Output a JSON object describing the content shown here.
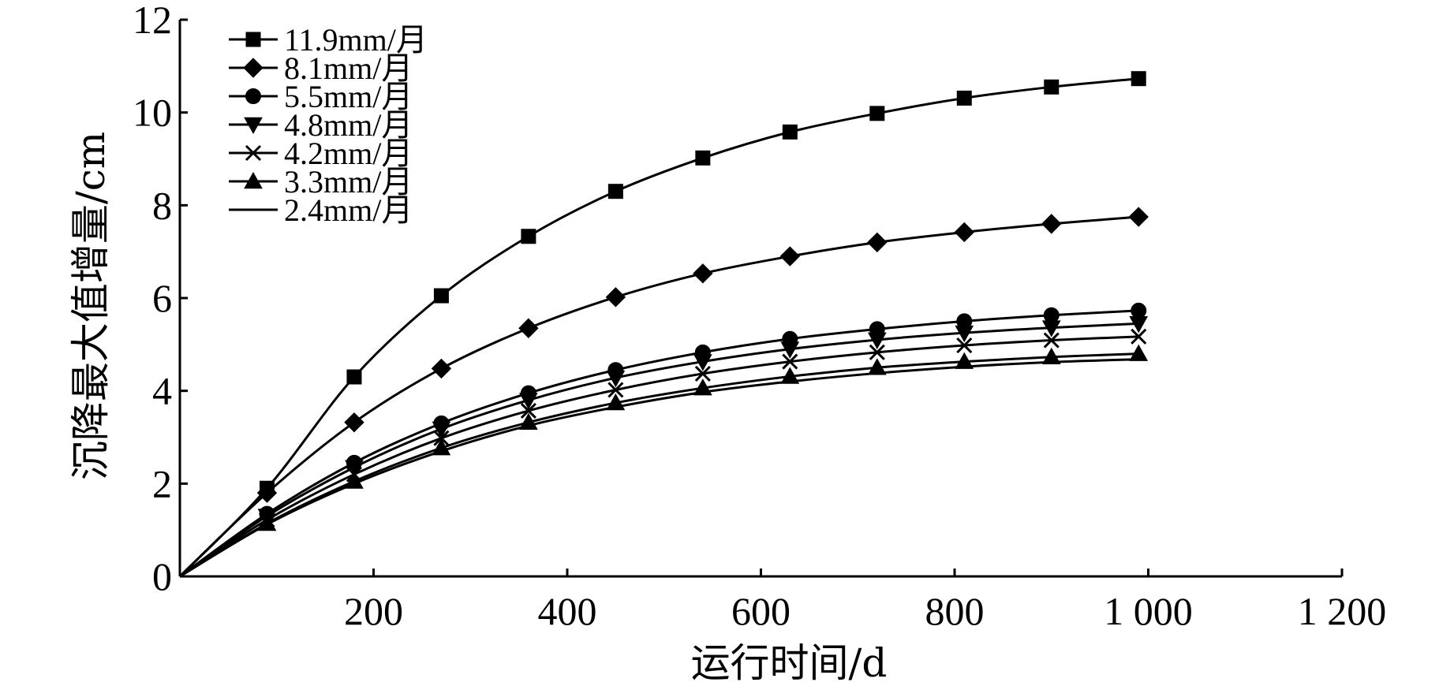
{
  "chart_data": {
    "type": "line",
    "xlabel": "运行时间/d",
    "ylabel": "沉降最大值增量/cm",
    "xlim": [
      0,
      1200
    ],
    "ylim": [
      0,
      12
    ],
    "x_ticks": [
      200,
      400,
      600,
      800,
      1000,
      1200
    ],
    "x_tick_labels": [
      "200",
      "400",
      "600",
      "800",
      "1 000",
      "1 200"
    ],
    "y_ticks": [
      0,
      2,
      4,
      6,
      8,
      10,
      12
    ],
    "y_tick_labels": [
      "0",
      "2",
      "4",
      "6",
      "8",
      "10",
      "12"
    ],
    "grid": false,
    "legend_position": "top-left",
    "x": [
      0,
      90,
      180,
      270,
      360,
      450,
      540,
      630,
      720,
      810,
      900,
      990
    ],
    "series": [
      {
        "name": "11.9mm/月",
        "marker": "square",
        "values": [
          0,
          1.9,
          4.3,
          6.05,
          7.33,
          8.3,
          9.02,
          9.58,
          9.98,
          10.31,
          10.55,
          10.73
        ]
      },
      {
        "name": "8.1mm/月",
        "marker": "diamond",
        "values": [
          0,
          1.8,
          3.32,
          4.48,
          5.35,
          6.02,
          6.53,
          6.9,
          7.2,
          7.42,
          7.6,
          7.75
        ]
      },
      {
        "name": "5.5mm/月",
        "marker": "circle",
        "values": [
          0,
          1.35,
          2.45,
          3.3,
          3.95,
          4.45,
          4.83,
          5.12,
          5.33,
          5.5,
          5.63,
          5.73
        ]
      },
      {
        "name": "4.8mm/月",
        "marker": "triangle-down",
        "values": [
          0,
          1.3,
          2.35,
          3.18,
          3.8,
          4.28,
          4.63,
          4.9,
          5.1,
          5.25,
          5.36,
          5.45
        ]
      },
      {
        "name": "4.2mm/月",
        "marker": "x",
        "values": [
          0,
          1.22,
          2.2,
          2.98,
          3.57,
          4.02,
          4.37,
          4.63,
          4.83,
          4.98,
          5.09,
          5.17
        ]
      },
      {
        "name": "3.3mm/月",
        "marker": "triangle-up",
        "values": [
          0,
          1.14,
          2.05,
          2.77,
          3.32,
          3.74,
          4.06,
          4.31,
          4.5,
          4.63,
          4.73,
          4.8
        ]
      },
      {
        "name": "2.4mm/月",
        "marker": "none",
        "values": [
          0,
          1.12,
          2.0,
          2.7,
          3.25,
          3.65,
          3.97,
          4.2,
          4.38,
          4.52,
          4.62,
          4.68
        ]
      }
    ]
  }
}
